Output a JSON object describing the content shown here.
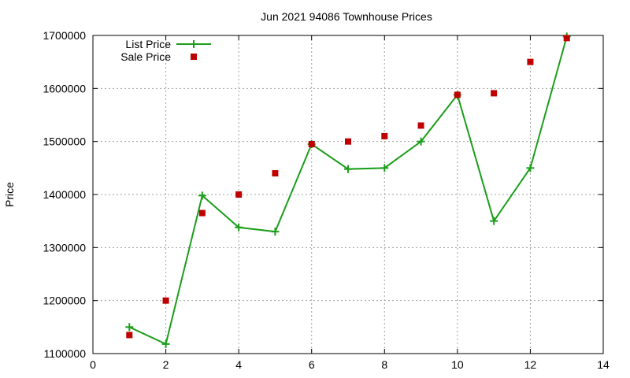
{
  "chart_data": {
    "type": "line",
    "title": "Jun 2021 94086 Townhouse Prices",
    "xlabel": "",
    "ylabel": "Price",
    "xlim": [
      0,
      14
    ],
    "ylim": [
      1100000,
      1700000
    ],
    "xticks": [
      0,
      2,
      4,
      6,
      8,
      10,
      12,
      14
    ],
    "yticks": [
      1100000,
      1200000,
      1300000,
      1400000,
      1500000,
      1600000,
      1700000
    ],
    "grid": true,
    "legend_position": "top-left",
    "series": [
      {
        "name": "List Price",
        "style": "line+cross",
        "color": "#1a9e1a",
        "x": [
          1,
          2,
          3,
          4,
          5,
          6,
          7,
          8,
          9,
          10,
          11,
          12,
          13
        ],
        "y": [
          1150000,
          1118000,
          1398000,
          1338000,
          1330000,
          1495000,
          1448000,
          1450000,
          1500000,
          1588000,
          1350000,
          1450000,
          1698000
        ]
      },
      {
        "name": "Sale Price",
        "style": "square",
        "color": "#c00000",
        "x": [
          1,
          2,
          3,
          4,
          5,
          6,
          7,
          8,
          9,
          10,
          11,
          12,
          13
        ],
        "y": [
          1135000,
          1200000,
          1365000,
          1400000,
          1440000,
          1495000,
          1500000,
          1510000,
          1530000,
          1588000,
          1591000,
          1650000,
          1695000
        ]
      }
    ]
  }
}
